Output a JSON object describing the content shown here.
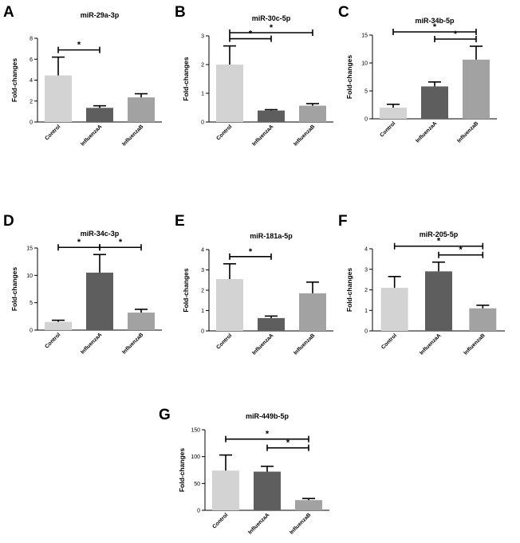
{
  "figure": {
    "panels": [
      {
        "letter": "A"
      },
      {
        "letter": "B"
      },
      {
        "letter": "C"
      },
      {
        "letter": "D"
      },
      {
        "letter": "E"
      },
      {
        "letter": "F"
      },
      {
        "letter": "G"
      }
    ]
  },
  "colors": {
    "Control": "#d3d3d3",
    "InfluenzaA": "#5e5e5e",
    "InfluenzaB": "#a2a2a2"
  },
  "chart_data": [
    {
      "panel": "A",
      "type": "bar",
      "title": "miR-29a-3p",
      "ylabel": "Fold-changes",
      "categories": [
        "Control",
        "InfluenzaA",
        "InfluenzaB"
      ],
      "values": [
        4.45,
        1.35,
        2.35
      ],
      "errors": [
        1.75,
        0.2,
        0.35
      ],
      "ylim": [
        0,
        8
      ],
      "ticks": [
        "0",
        "2",
        "4",
        "6",
        "8"
      ],
      "significance": [
        {
          "from": 0,
          "to": 1,
          "label": "*"
        }
      ]
    },
    {
      "panel": "B",
      "type": "bar",
      "title": "miR-30c-5p",
      "ylabel": "Fold-changes",
      "categories": [
        "Control",
        "InfluenzaA",
        "InfluenzaB"
      ],
      "values": [
        2.0,
        0.4,
        0.57
      ],
      "errors": [
        0.65,
        0.03,
        0.07
      ],
      "ylim": [
        0,
        3
      ],
      "ticks": [
        "0",
        "1",
        "2",
        "3"
      ],
      "significance": [
        {
          "from": 0,
          "to": 1,
          "label": "*"
        },
        {
          "from": 0,
          "to": 2,
          "label": "*"
        }
      ]
    },
    {
      "panel": "C",
      "type": "bar",
      "title": "miR-34b-5p",
      "ylabel": "Fold-changes",
      "categories": [
        "Control",
        "InfluenzaA",
        "InfluenzaB"
      ],
      "values": [
        2.0,
        5.8,
        10.6
      ],
      "errors": [
        0.6,
        0.8,
        2.4
      ],
      "ylim": [
        0,
        15
      ],
      "ticks": [
        "0",
        "5",
        "10",
        "15"
      ],
      "significance": [
        {
          "from": 1,
          "to": 2,
          "label": "*"
        },
        {
          "from": 0,
          "to": 2,
          "label": "*"
        }
      ]
    },
    {
      "panel": "D",
      "type": "bar",
      "title": "miR-34c-3p",
      "ylabel": "Fold-changes",
      "categories": [
        "Control",
        "InfluenzaA",
        "InfluenzaB"
      ],
      "values": [
        1.5,
        10.5,
        3.2
      ],
      "errors": [
        0.3,
        3.3,
        0.6
      ],
      "ylim": [
        0,
        15
      ],
      "ticks": [
        "0",
        "5",
        "10",
        "15"
      ],
      "significance": [
        {
          "from": 0,
          "to": 1,
          "label": "*"
        },
        {
          "from": 1,
          "to": 2,
          "label": "*"
        }
      ]
    },
    {
      "panel": "E",
      "type": "bar",
      "title": "miR-181a-5p",
      "ylabel": "Fold-changes",
      "categories": [
        "Control",
        "InfluenzaA",
        "InfluenzaB"
      ],
      "values": [
        2.55,
        0.63,
        1.85
      ],
      "errors": [
        0.75,
        0.1,
        0.55
      ],
      "ylim": [
        0,
        4
      ],
      "ticks": [
        "0",
        "1",
        "2",
        "3",
        "4"
      ],
      "significance": [
        {
          "from": 0,
          "to": 1,
          "label": "*"
        }
      ]
    },
    {
      "panel": "F",
      "type": "bar",
      "title": "miR-205-5p",
      "ylabel": "Fold-changes",
      "categories": [
        "Control",
        "InfluenzaA",
        "InfluenzaB"
      ],
      "values": [
        2.1,
        2.9,
        1.1
      ],
      "errors": [
        0.55,
        0.45,
        0.15
      ],
      "ylim": [
        0,
        4
      ],
      "ticks": [
        "0",
        "1",
        "2",
        "3",
        "4"
      ],
      "significance": [
        {
          "from": 0,
          "to": 2,
          "label": "*"
        },
        {
          "from": 1,
          "to": 2,
          "label": "*"
        }
      ]
    },
    {
      "panel": "G",
      "type": "bar",
      "title": "miR-449b-5p",
      "ylabel": "Fold-changes",
      "categories": [
        "Control",
        "InfluenzaA",
        "InfluenzaB"
      ],
      "values": [
        74,
        72,
        19
      ],
      "errors": [
        29,
        10,
        3
      ],
      "ylim": [
        0,
        150
      ],
      "ticks": [
        "0",
        "50",
        "100",
        "150"
      ],
      "significance": [
        {
          "from": 0,
          "to": 2,
          "label": "*"
        },
        {
          "from": 1,
          "to": 2,
          "label": "*"
        }
      ]
    }
  ]
}
